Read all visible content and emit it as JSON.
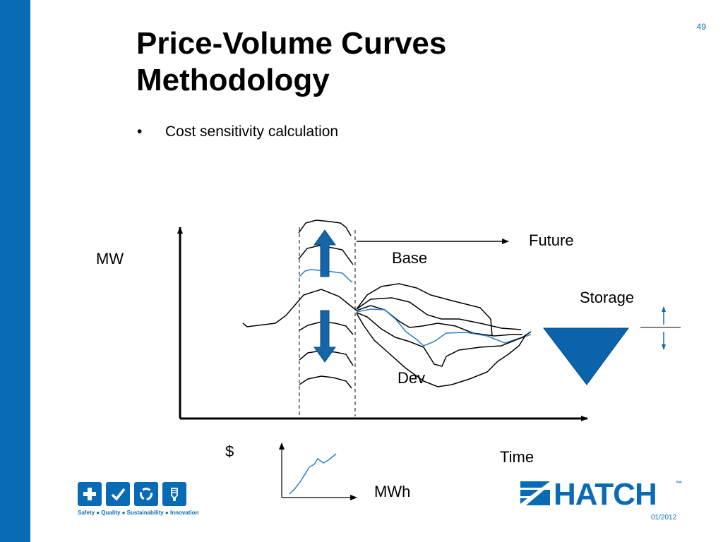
{
  "slide": {
    "number": "49",
    "title_line1": "Price-Volume Curves",
    "title_line2": "Methodology",
    "bullet_marker": "•",
    "bullet": "Cost sensitivity calculation",
    "date": "01/2012"
  },
  "diagram": {
    "y_axis_label": "MW",
    "x_axis_label": "Time",
    "future_label": "Future",
    "base_label": "Base",
    "dev_label": "Dev",
    "storage_label": "Storage",
    "inset_y_label": "$",
    "inset_x_label": "MWh"
  },
  "footer": {
    "tagline": "Safety ● Quality ● Sustainability ● Innovation",
    "brand": "HATCH",
    "brand_tm": "™",
    "tiles": [
      "cross-icon",
      "check-icon",
      "recycle-icon",
      "lightbulb-icon"
    ]
  },
  "colors": {
    "brand_blue": "#0a6bb5",
    "arrow_blue": "#1565a8",
    "curve_blue": "#2a7fc4"
  }
}
